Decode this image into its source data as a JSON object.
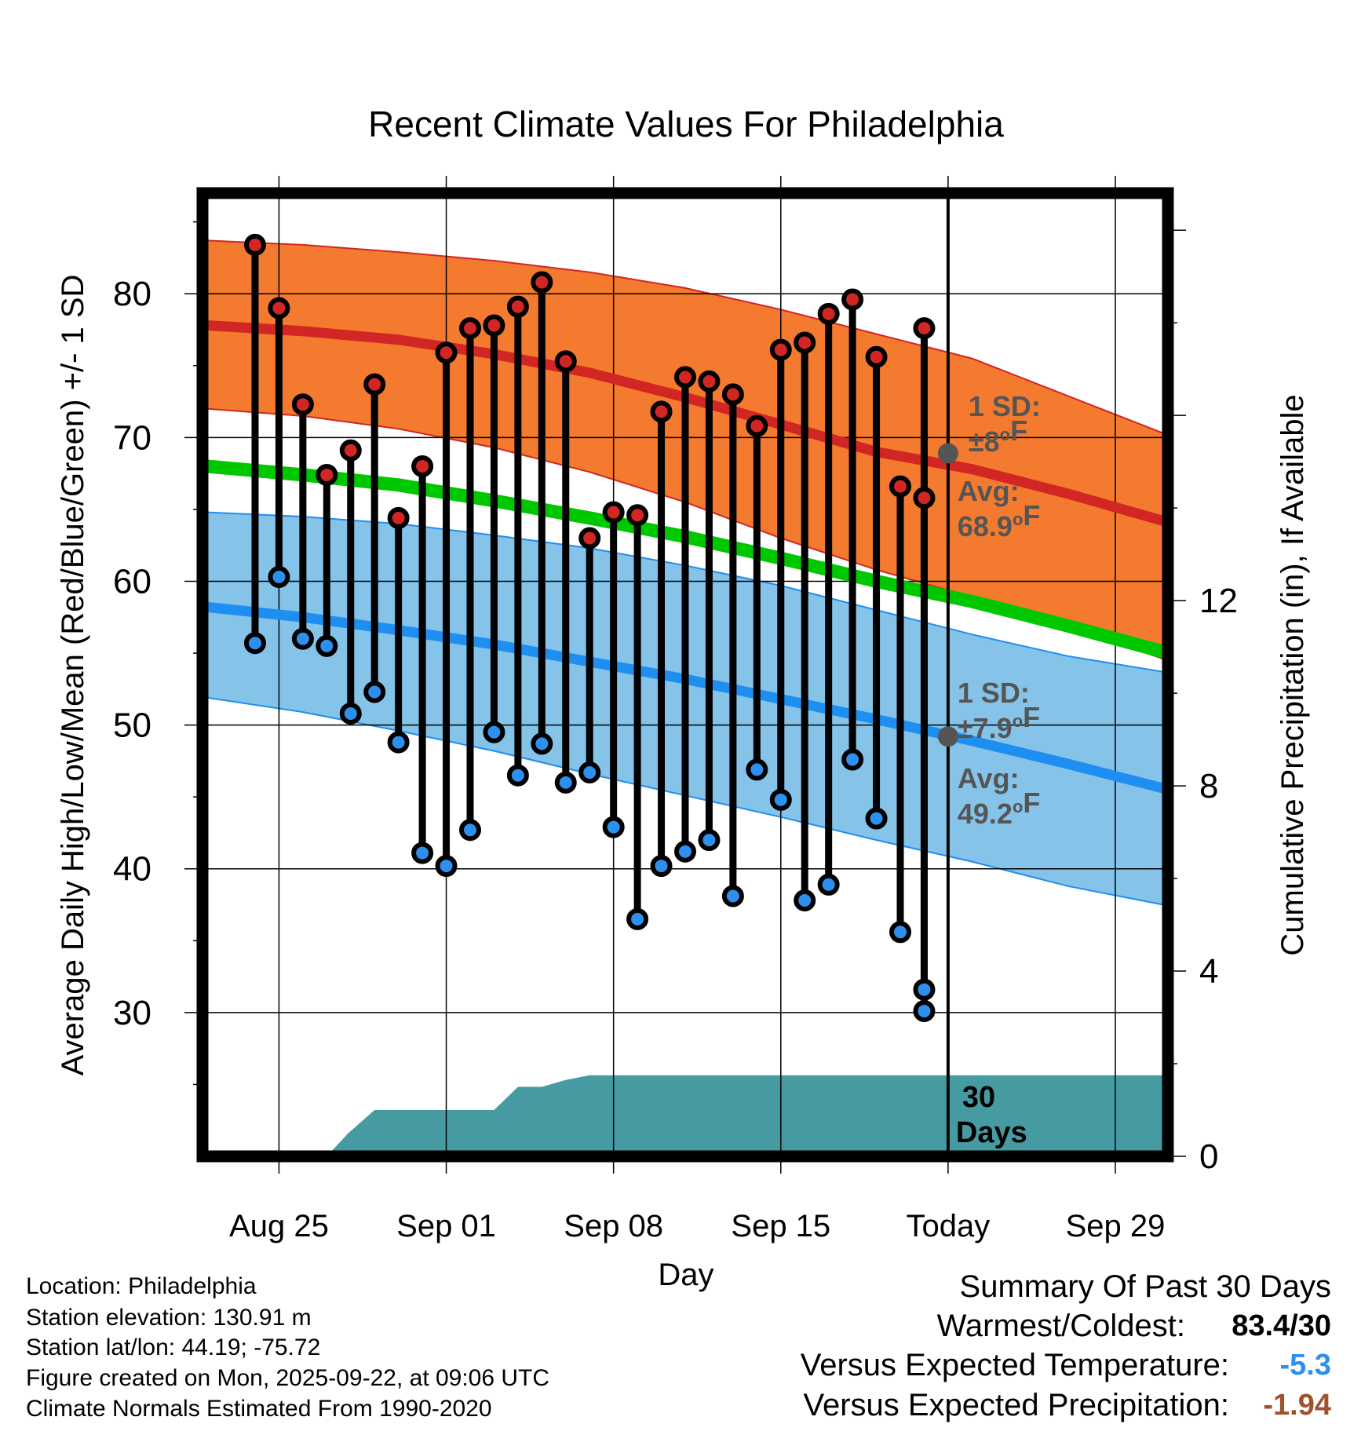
{
  "chart_data": {
    "type": "line",
    "title": "Recent Climate Values For Philadelphia",
    "xlabel": "Day",
    "ylabel": "Average Daily High/Low/Mean (Red/Blue/Green) +/- 1 SD",
    "y2label": "Cumulative Precipitation (in), If Available",
    "ylim": [
      20,
      87
    ],
    "y_ticks": [
      30,
      40,
      50,
      60,
      70,
      80
    ],
    "y2lim": [
      0,
      20.8
    ],
    "y2_ticks": [
      0,
      4,
      8,
      12
    ],
    "xlim": [
      -2.2,
      38.2
    ],
    "x_ticks": [
      {
        "x": 1,
        "label": "Aug 25"
      },
      {
        "x": 8,
        "label": "Sep 01"
      },
      {
        "x": 15,
        "label": "Sep 08"
      },
      {
        "x": 22,
        "label": "Sep 15"
      },
      {
        "x": 29,
        "label": "Today"
      },
      {
        "x": 36,
        "label": "Sep 29"
      }
    ],
    "today_x": 29,
    "days": [
      0,
      1,
      2,
      3,
      4,
      5,
      6,
      7,
      8,
      9,
      10,
      11,
      12,
      13,
      14,
      15,
      16,
      17,
      18,
      19,
      20,
      21,
      22,
      23,
      24,
      25,
      26,
      27,
      28
    ],
    "highs": [
      83.4,
      79.0,
      72.3,
      67.4,
      69.1,
      73.7,
      64.4,
      68.0,
      75.9,
      77.6,
      77.8,
      79.1,
      80.8,
      75.3,
      63.0,
      64.8,
      64.6,
      71.8,
      74.2,
      73.9,
      73.0,
      70.8,
      76.1,
      76.6,
      78.6,
      79.6,
      75.6,
      66.6,
      65.8
    ],
    "lows": [
      55.7,
      60.3,
      56.0,
      55.5,
      50.8,
      52.3,
      48.8,
      41.1,
      40.2,
      42.7,
      49.5,
      46.5,
      48.7,
      46.0,
      46.7,
      42.9,
      36.5,
      40.2,
      41.2,
      42.0,
      38.1,
      46.9,
      44.8,
      37.8,
      38.9,
      47.6,
      43.5,
      35.6,
      31.6
    ],
    "extra_low": {
      "x": 28,
      "high": 77.6,
      "low": 30.1
    },
    "normals": {
      "x": [
        -2,
        2,
        6,
        10,
        14,
        18,
        22,
        26,
        30,
        34,
        38
      ],
      "high_mean": [
        77.8,
        77.4,
        76.8,
        75.8,
        74.5,
        72.8,
        70.9,
        69.0,
        67.8,
        66.1,
        64.2
      ],
      "high_upper": [
        83.7,
        83.4,
        82.9,
        82.3,
        81.5,
        80.4,
        78.9,
        77.2,
        75.5,
        72.9,
        70.3
      ],
      "high_lower": [
        72.0,
        71.5,
        70.6,
        69.3,
        67.6,
        65.5,
        63.0,
        60.8,
        58.9,
        56.9,
        54.6
      ],
      "mean": [
        68.0,
        67.4,
        66.7,
        65.6,
        64.4,
        63.1,
        61.6,
        60.0,
        58.6,
        56.9,
        55.1
      ],
      "low_mean": [
        58.2,
        57.5,
        56.6,
        55.6,
        54.4,
        53.2,
        51.8,
        50.4,
        48.9,
        47.3,
        45.6
      ],
      "low_upper": [
        64.8,
        64.5,
        64.0,
        63.2,
        62.3,
        61.1,
        59.7,
        58.0,
        56.3,
        54.8,
        53.7
      ],
      "low_lower": [
        51.9,
        50.9,
        49.6,
        48.2,
        46.6,
        45.1,
        43.6,
        42.0,
        40.5,
        38.8,
        37.5
      ]
    },
    "precipitation": {
      "x": [
        -2,
        3,
        3.9,
        5,
        6,
        10,
        11,
        12,
        13,
        14,
        38
      ],
      "values": [
        0,
        0,
        0.5,
        1.0,
        1.0,
        1.0,
        1.5,
        1.5,
        1.65,
        1.75,
        1.75
      ]
    },
    "high_sd_label": {
      "line1": "1 SD:",
      "line2": "±8°F",
      "value": 68.9
    },
    "high_avg_label": {
      "line1": "Avg:",
      "line2": "68.9°F"
    },
    "low_sd_label": {
      "line1": "1 SD:",
      "line2": "±7.9°F",
      "value": 49.2
    },
    "low_avg_label": {
      "line1": "Avg:",
      "line2": "49.2°F"
    },
    "days_label": {
      "line1": "30",
      "line2": "Days"
    },
    "colors": {
      "high_band": "#f47a2f",
      "high_line": "#d12623",
      "mean_line": "#00c800",
      "low_band": "#85c3e8",
      "low_line": "#1f8ef1",
      "precip": "#469ba2",
      "marker_high": "#d12623",
      "marker_low": "#2d90ee",
      "label_gray": "#555555"
    }
  },
  "info": {
    "location": "Location: Philadelphia",
    "elevation": "Station elevation: 130.91 m",
    "latlon": "Station lat/lon: 44.19; -75.72",
    "created": "Figure created on Mon, 2025-09-22, at 09:06 UTC",
    "normals": "Climate Normals Estimated From 1990-2020"
  },
  "summary": {
    "title": "Summary Of Past 30 Days",
    "warmest_label": "Warmest/Coldest:",
    "warmest_value": "83.4/30",
    "temp_label": "Versus Expected Temperature:",
    "temp_value": "-5.3",
    "temp_color": "#2d90ee",
    "precip_label": "Versus Expected Precipitation:",
    "precip_value": "-1.94",
    "precip_color": "#a0522d"
  }
}
